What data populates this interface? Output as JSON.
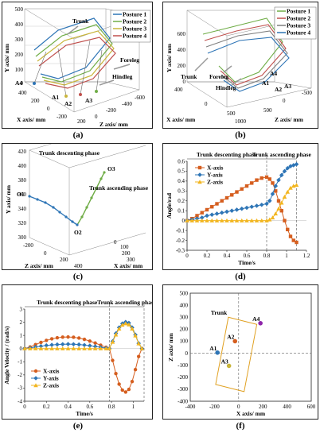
{
  "captions": [
    "(a)",
    "(b)",
    "(c)",
    "(d)",
    "(e)",
    "(f)"
  ],
  "panel_a": {
    "legend": [
      "Posture 1",
      "Posture 2",
      "Posture 3",
      "Posture 4"
    ],
    "colors": [
      "#2e75b6",
      "#70ad47",
      "#c9b53a",
      "#c0504d"
    ],
    "ylabel": "Y axis/ mm",
    "xlabel": "X axis/ mm",
    "zlabel": "Z axis/ mm",
    "yticks": [
      "500",
      "400",
      "300",
      "200",
      "100",
      "0"
    ],
    "xticks": [
      "400",
      "200",
      "0",
      "-200"
    ],
    "zticks": [
      "-600",
      "-400",
      "-200",
      "0",
      "200"
    ],
    "annotations": {
      "trunk": "Trunk",
      "foreleg": "Foreleg",
      "hindleg": "Hindleg",
      "a4": "A4",
      "a1": "A1",
      "a2": "A2",
      "a3": "A3"
    }
  },
  "panel_b": {
    "legend": [
      "Posture 1",
      "Posture 2",
      "Posture 3",
      "Posture 4"
    ],
    "colors": [
      "#70ad47",
      "#c0504d",
      "#7f7f7f",
      "#2e75b6"
    ],
    "ylabel": "Y axis/ mm",
    "xlabel": "X axis/ mm",
    "zlabel": "Z axis/ mm",
    "yticks": [
      "600",
      "400",
      "200",
      "0"
    ],
    "xticks": [
      "400",
      "0",
      "500",
      "1000"
    ],
    "zticks": [
      "-500",
      "0",
      "500"
    ],
    "annotations": {
      "trunk": "Trunk",
      "foreleg": "Foreleg",
      "hindleg": "Hindleg",
      "a4": "A4",
      "a1": "A1",
      "a2": "A2",
      "a3": "A3"
    }
  },
  "panel_c": {
    "ylabel": "Y axis/ mm",
    "xlabel": "X axis/ mm",
    "zlabel": "Z axis/ mm",
    "yticks": [
      "420",
      "400",
      "380",
      "360",
      "340",
      "320",
      "300"
    ],
    "zticks": [
      "-200",
      "0",
      "200",
      "400"
    ],
    "xticks": [
      "0",
      "100",
      "200",
      "300"
    ],
    "annotations": {
      "desc": "Trunk descenting phase",
      "asc": "Trunk ascending phase",
      "o1": "O1",
      "o2": "O2",
      "o3": "O3"
    }
  },
  "chart_data": [
    {
      "type": "line",
      "title": "",
      "xlabel": "Time/s",
      "ylabel": "Angle/rad",
      "xlim": [
        0,
        1.2
      ],
      "ylim": [
        -0.3,
        0.6
      ],
      "xticks": [
        "0",
        "0.2",
        "0.4",
        "0.6",
        "0.8",
        "1",
        "1.2"
      ],
      "yticks": [
        "0.6",
        "0.5",
        "0.4",
        "0.3",
        "0.2",
        "0.1",
        "0",
        "-0.1",
        "-0.2",
        "-0.3"
      ],
      "phases": [
        "Trunk descenting phase",
        "Trunk ascending phase"
      ],
      "phase_bounds": [
        0,
        0.8,
        1.1
      ],
      "x": [
        0,
        0.05,
        0.1,
        0.15,
        0.2,
        0.25,
        0.3,
        0.35,
        0.4,
        0.45,
        0.5,
        0.55,
        0.6,
        0.65,
        0.7,
        0.75,
        0.8,
        0.83,
        0.86,
        0.89,
        0.92,
        0.95,
        0.98,
        1.01,
        1.04,
        1.07,
        1.1
      ],
      "series": [
        {
          "name": "X-axis",
          "color": "#d55e1f",
          "marker": "square",
          "values": [
            0,
            0.02,
            0.05,
            0.08,
            0.11,
            0.14,
            0.17,
            0.2,
            0.23,
            0.26,
            0.29,
            0.32,
            0.35,
            0.38,
            0.41,
            0.43,
            0.44,
            0.42,
            0.38,
            0.3,
            0.2,
            0.1,
            0,
            -0.09,
            -0.16,
            -0.2,
            -0.22
          ]
        },
        {
          "name": "Y-axis",
          "color": "#2e75b6",
          "marker": "diamond",
          "values": [
            0,
            0.01,
            0.02,
            0.03,
            0.05,
            0.06,
            0.07,
            0.08,
            0.09,
            0.1,
            0.11,
            0.12,
            0.13,
            0.14,
            0.15,
            0.16,
            0.17,
            0.2,
            0.27,
            0.35,
            0.41,
            0.46,
            0.5,
            0.53,
            0.55,
            0.56,
            0.57
          ]
        },
        {
          "name": "Z-axis",
          "color": "#f2b620",
          "marker": "triangle",
          "values": [
            0,
            0,
            0,
            0,
            0,
            0,
            0,
            0,
            0,
            0,
            0,
            0,
            0,
            0,
            0,
            0,
            0,
            0.01,
            0.03,
            0.07,
            0.12,
            0.18,
            0.24,
            0.29,
            0.33,
            0.35,
            0.36
          ]
        }
      ]
    },
    {
      "type": "line",
      "title": "",
      "xlabel": "Time/s",
      "ylabel": "Angle Velocity / (rad/s)",
      "xlim": [
        0,
        1.1
      ],
      "ylim": [
        -4,
        3
      ],
      "xticks": [
        "0",
        "0.2",
        "0.4",
        "0.6",
        "0.8",
        "1"
      ],
      "yticks": [
        "3",
        "2",
        "1",
        "0",
        "-1",
        "-2",
        "-3",
        "-4"
      ],
      "phases": [
        "Trunk descenting phase",
        "Trunk ascending phase"
      ],
      "phase_bounds": [
        0,
        0.78,
        1.1
      ],
      "x": [
        0,
        0.05,
        0.1,
        0.15,
        0.2,
        0.25,
        0.3,
        0.35,
        0.4,
        0.45,
        0.5,
        0.55,
        0.6,
        0.65,
        0.7,
        0.75,
        0.78,
        0.81,
        0.84,
        0.87,
        0.9,
        0.93,
        0.96,
        0.99,
        1.02,
        1.05,
        1.08
      ],
      "series": [
        {
          "name": "X-axis",
          "color": "#d55e1f",
          "marker": "circle",
          "values": [
            0,
            0.12,
            0.3,
            0.47,
            0.62,
            0.74,
            0.82,
            0.87,
            0.88,
            0.86,
            0.8,
            0.7,
            0.57,
            0.42,
            0.26,
            0.1,
            0,
            -0.9,
            -1.9,
            -2.7,
            -3.15,
            -3.3,
            -3.1,
            -2.5,
            -1.6,
            -0.6,
            0
          ]
        },
        {
          "name": "Y-axis",
          "color": "#2e75b6",
          "marker": "diamond",
          "values": [
            0,
            0.05,
            0.12,
            0.18,
            0.24,
            0.28,
            0.31,
            0.33,
            0.34,
            0.33,
            0.31,
            0.27,
            0.22,
            0.16,
            0.1,
            0.04,
            0,
            0.55,
            1.15,
            1.6,
            1.9,
            2.02,
            1.95,
            1.6,
            1.05,
            0.4,
            0
          ]
        },
        {
          "name": "Z-axis",
          "color": "#f2b620",
          "marker": "triangle",
          "values": [
            0,
            0,
            0,
            0,
            0,
            0,
            0,
            0,
            0,
            0,
            0,
            0,
            0,
            0,
            0,
            0,
            0,
            0.5,
            1.05,
            1.5,
            1.8,
            1.9,
            1.82,
            1.5,
            0.98,
            0.38,
            0
          ]
        }
      ]
    },
    {
      "type": "scatter",
      "title": "",
      "xlabel": "X axis/ mm",
      "ylabel": "Z axis/ mm",
      "xlim": [
        -400,
        600
      ],
      "ylim": [
        -400,
        500
      ],
      "xticks": [
        "-400",
        "-200",
        "0",
        "200",
        "400",
        "600"
      ],
      "yticks": [
        "500",
        "400",
        "300",
        "200",
        "100",
        "0",
        "-100",
        "-200",
        "-300",
        "-400"
      ],
      "rect_label": "Trunk",
      "rect_corners": [
        [
          -85,
          300
        ],
        [
          150,
          240
        ],
        [
          45,
          -320
        ],
        [
          -190,
          -260
        ]
      ],
      "points": [
        {
          "label": "A1",
          "x": -175,
          "y": 5,
          "color": "#2e75b6"
        },
        {
          "label": "A2",
          "x": -30,
          "y": 100,
          "color": "#d55e1f"
        },
        {
          "label": "A3",
          "x": -80,
          "y": -105,
          "color": "#c9b53a"
        },
        {
          "label": "A4",
          "x": 180,
          "y": 250,
          "color": "#8e24aa"
        }
      ]
    }
  ]
}
